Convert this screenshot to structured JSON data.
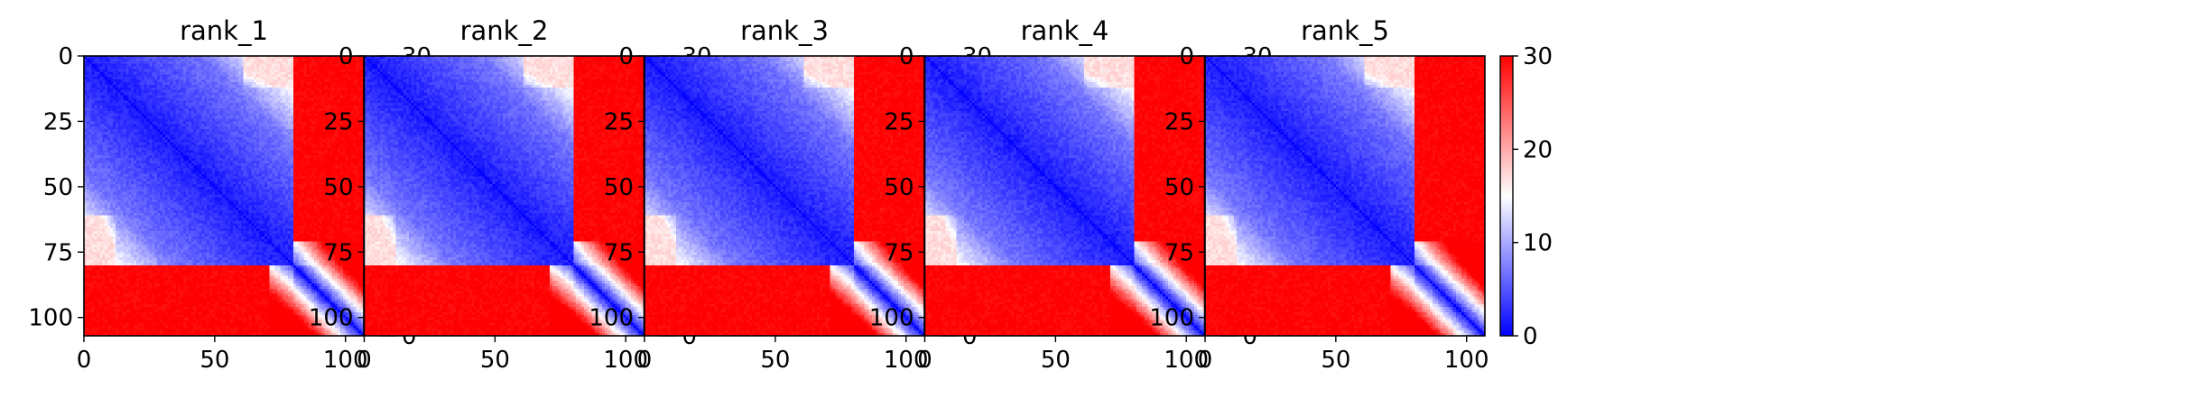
{
  "chart_data": {
    "type": "heatmap",
    "n": 107,
    "vmin": 0,
    "vmax": 30,
    "colormap": "bwr",
    "colors": {
      "low": "#0000ff",
      "mid": "#ffffff",
      "high": "#ff0000"
    },
    "xticks": [
      0,
      50,
      100
    ],
    "yticks": [
      0,
      25,
      50,
      75,
      100
    ],
    "colorbar_ticks": [
      0,
      10,
      20,
      30
    ],
    "domains": [
      {
        "start": 0,
        "end": 80
      },
      {
        "start": 80,
        "end": 107
      }
    ],
    "panels": [
      {
        "title": "rank_1"
      },
      {
        "title": "rank_2"
      },
      {
        "title": "rank_3"
      },
      {
        "title": "rank_4"
      },
      {
        "title": "rank_5"
      }
    ]
  }
}
